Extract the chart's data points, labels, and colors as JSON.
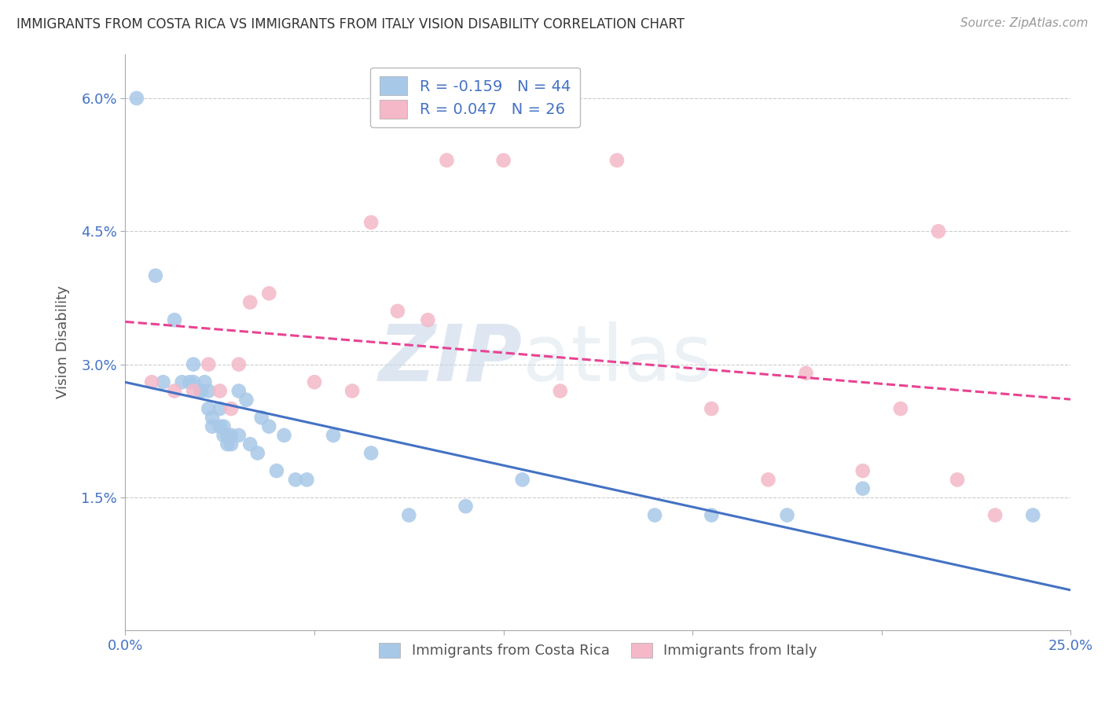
{
  "title": "IMMIGRANTS FROM COSTA RICA VS IMMIGRANTS FROM ITALY VISION DISABILITY CORRELATION CHART",
  "source": "Source: ZipAtlas.com",
  "ylabel": "Vision Disability",
  "xlim": [
    0.0,
    0.25
  ],
  "ylim": [
    0.0,
    0.065
  ],
  "xticks": [
    0.0,
    0.05,
    0.1,
    0.15,
    0.2,
    0.25
  ],
  "xticklabels": [
    "0.0%",
    "",
    "",
    "",
    "",
    "25.0%"
  ],
  "yticks": [
    0.015,
    0.03,
    0.045,
    0.06
  ],
  "yticklabels": [
    "1.5%",
    "3.0%",
    "4.5%",
    "6.0%"
  ],
  "legend1_label": "R = -0.159   N = 44",
  "legend2_label": "R = 0.047   N = 26",
  "legend1_color": "#a8c8e8",
  "legend2_color": "#f4b8c8",
  "costa_rica_color": "#a8c8e8",
  "italy_color": "#f4b8c8",
  "trend_costa_rica_color": "#4472c4",
  "trend_italy_color": "#e84393",
  "watermark_zip": "ZIP",
  "watermark_atlas": "atlas",
  "background_color": "#ffffff",
  "grid_color": "#cccccc",
  "costa_rica_x": [
    0.003,
    0.008,
    0.01,
    0.013,
    0.015,
    0.017,
    0.018,
    0.018,
    0.02,
    0.02,
    0.021,
    0.022,
    0.022,
    0.023,
    0.023,
    0.025,
    0.025,
    0.026,
    0.026,
    0.027,
    0.027,
    0.028,
    0.028,
    0.03,
    0.03,
    0.032,
    0.033,
    0.035,
    0.036,
    0.038,
    0.04,
    0.042,
    0.045,
    0.048,
    0.055,
    0.065,
    0.075,
    0.09,
    0.105,
    0.14,
    0.155,
    0.175,
    0.195,
    0.24
  ],
  "costa_rica_y": [
    0.06,
    0.04,
    0.028,
    0.035,
    0.028,
    0.028,
    0.03,
    0.028,
    0.027,
    0.027,
    0.028,
    0.027,
    0.025,
    0.024,
    0.023,
    0.025,
    0.023,
    0.023,
    0.022,
    0.022,
    0.021,
    0.022,
    0.021,
    0.027,
    0.022,
    0.026,
    0.021,
    0.02,
    0.024,
    0.023,
    0.018,
    0.022,
    0.017,
    0.017,
    0.022,
    0.02,
    0.013,
    0.014,
    0.017,
    0.013,
    0.013,
    0.013,
    0.016,
    0.013
  ],
  "italy_x": [
    0.007,
    0.013,
    0.018,
    0.022,
    0.025,
    0.028,
    0.03,
    0.033,
    0.038,
    0.05,
    0.06,
    0.065,
    0.072,
    0.08,
    0.085,
    0.1,
    0.115,
    0.13,
    0.155,
    0.17,
    0.18,
    0.195,
    0.205,
    0.215,
    0.22,
    0.23
  ],
  "italy_y": [
    0.028,
    0.027,
    0.027,
    0.03,
    0.027,
    0.025,
    0.03,
    0.037,
    0.038,
    0.028,
    0.027,
    0.046,
    0.036,
    0.035,
    0.053,
    0.053,
    0.027,
    0.053,
    0.025,
    0.017,
    0.029,
    0.018,
    0.025,
    0.045,
    0.017,
    0.013
  ]
}
